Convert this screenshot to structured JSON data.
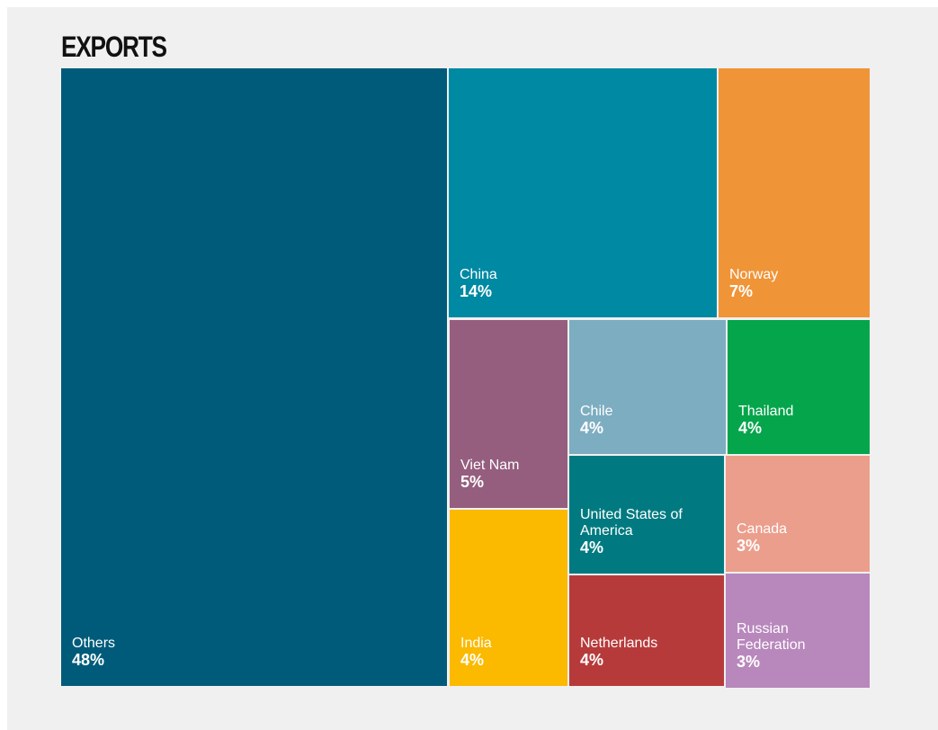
{
  "chart_data": {
    "type": "treemap",
    "title": "EXPORTS",
    "categories": [
      "Others",
      "China",
      "Norway",
      "Viet Nam",
      "India",
      "Chile",
      "Thailand",
      "United States of America",
      "Canada",
      "Netherlands",
      "Russian Federation"
    ],
    "values": [
      48,
      14,
      7,
      5,
      4,
      4,
      4,
      4,
      3,
      4,
      3
    ],
    "value_labels": [
      "48%",
      "14%",
      "7%",
      "5%",
      "4%",
      "4%",
      "4%",
      "4%",
      "3%",
      "4%",
      "3%"
    ],
    "colors": [
      "#005b7a",
      "#0089a3",
      "#f09438",
      "#955e7e",
      "#fbb900",
      "#7dadc1",
      "#05a54b",
      "#007a80",
      "#eb9e8c",
      "#b73a3a",
      "#b887bc"
    ]
  }
}
